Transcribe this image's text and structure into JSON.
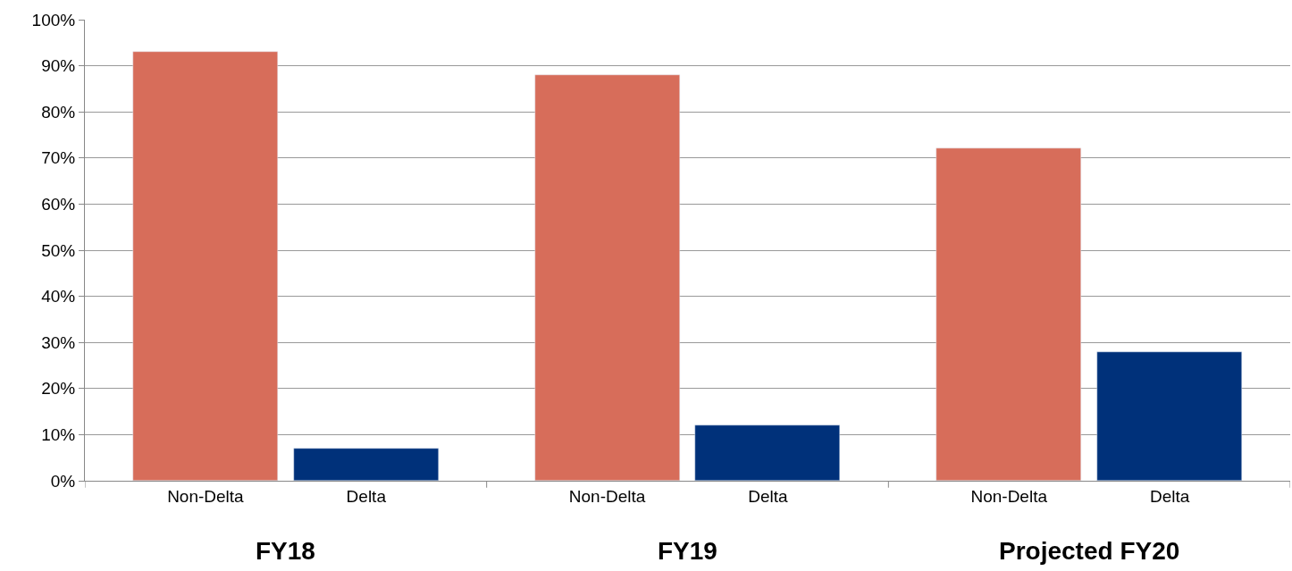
{
  "chart_data": {
    "type": "bar",
    "categories": [
      "FY18",
      "FY19",
      "Projected FY20"
    ],
    "series": [
      {
        "name": "Non-Delta",
        "color": "#d76d5a",
        "values": [
          93,
          88,
          72
        ]
      },
      {
        "name": "Delta",
        "color": "#00317a",
        "values": [
          7,
          12,
          28
        ]
      }
    ],
    "ylim": [
      0,
      100
    ],
    "yticks": [
      {
        "value": 0,
        "label": "0%"
      },
      {
        "value": 10,
        "label": "10%"
      },
      {
        "value": 20,
        "label": "20%"
      },
      {
        "value": 30,
        "label": "30%"
      },
      {
        "value": 40,
        "label": "40%"
      },
      {
        "value": 50,
        "label": "50%"
      },
      {
        "value": 60,
        "label": "60%"
      },
      {
        "value": 70,
        "label": "70%"
      },
      {
        "value": 80,
        "label": "80%"
      },
      {
        "value": 90,
        "label": "90%"
      },
      {
        "value": 100,
        "label": "100%"
      }
    ],
    "grid": "y",
    "legend": false
  }
}
